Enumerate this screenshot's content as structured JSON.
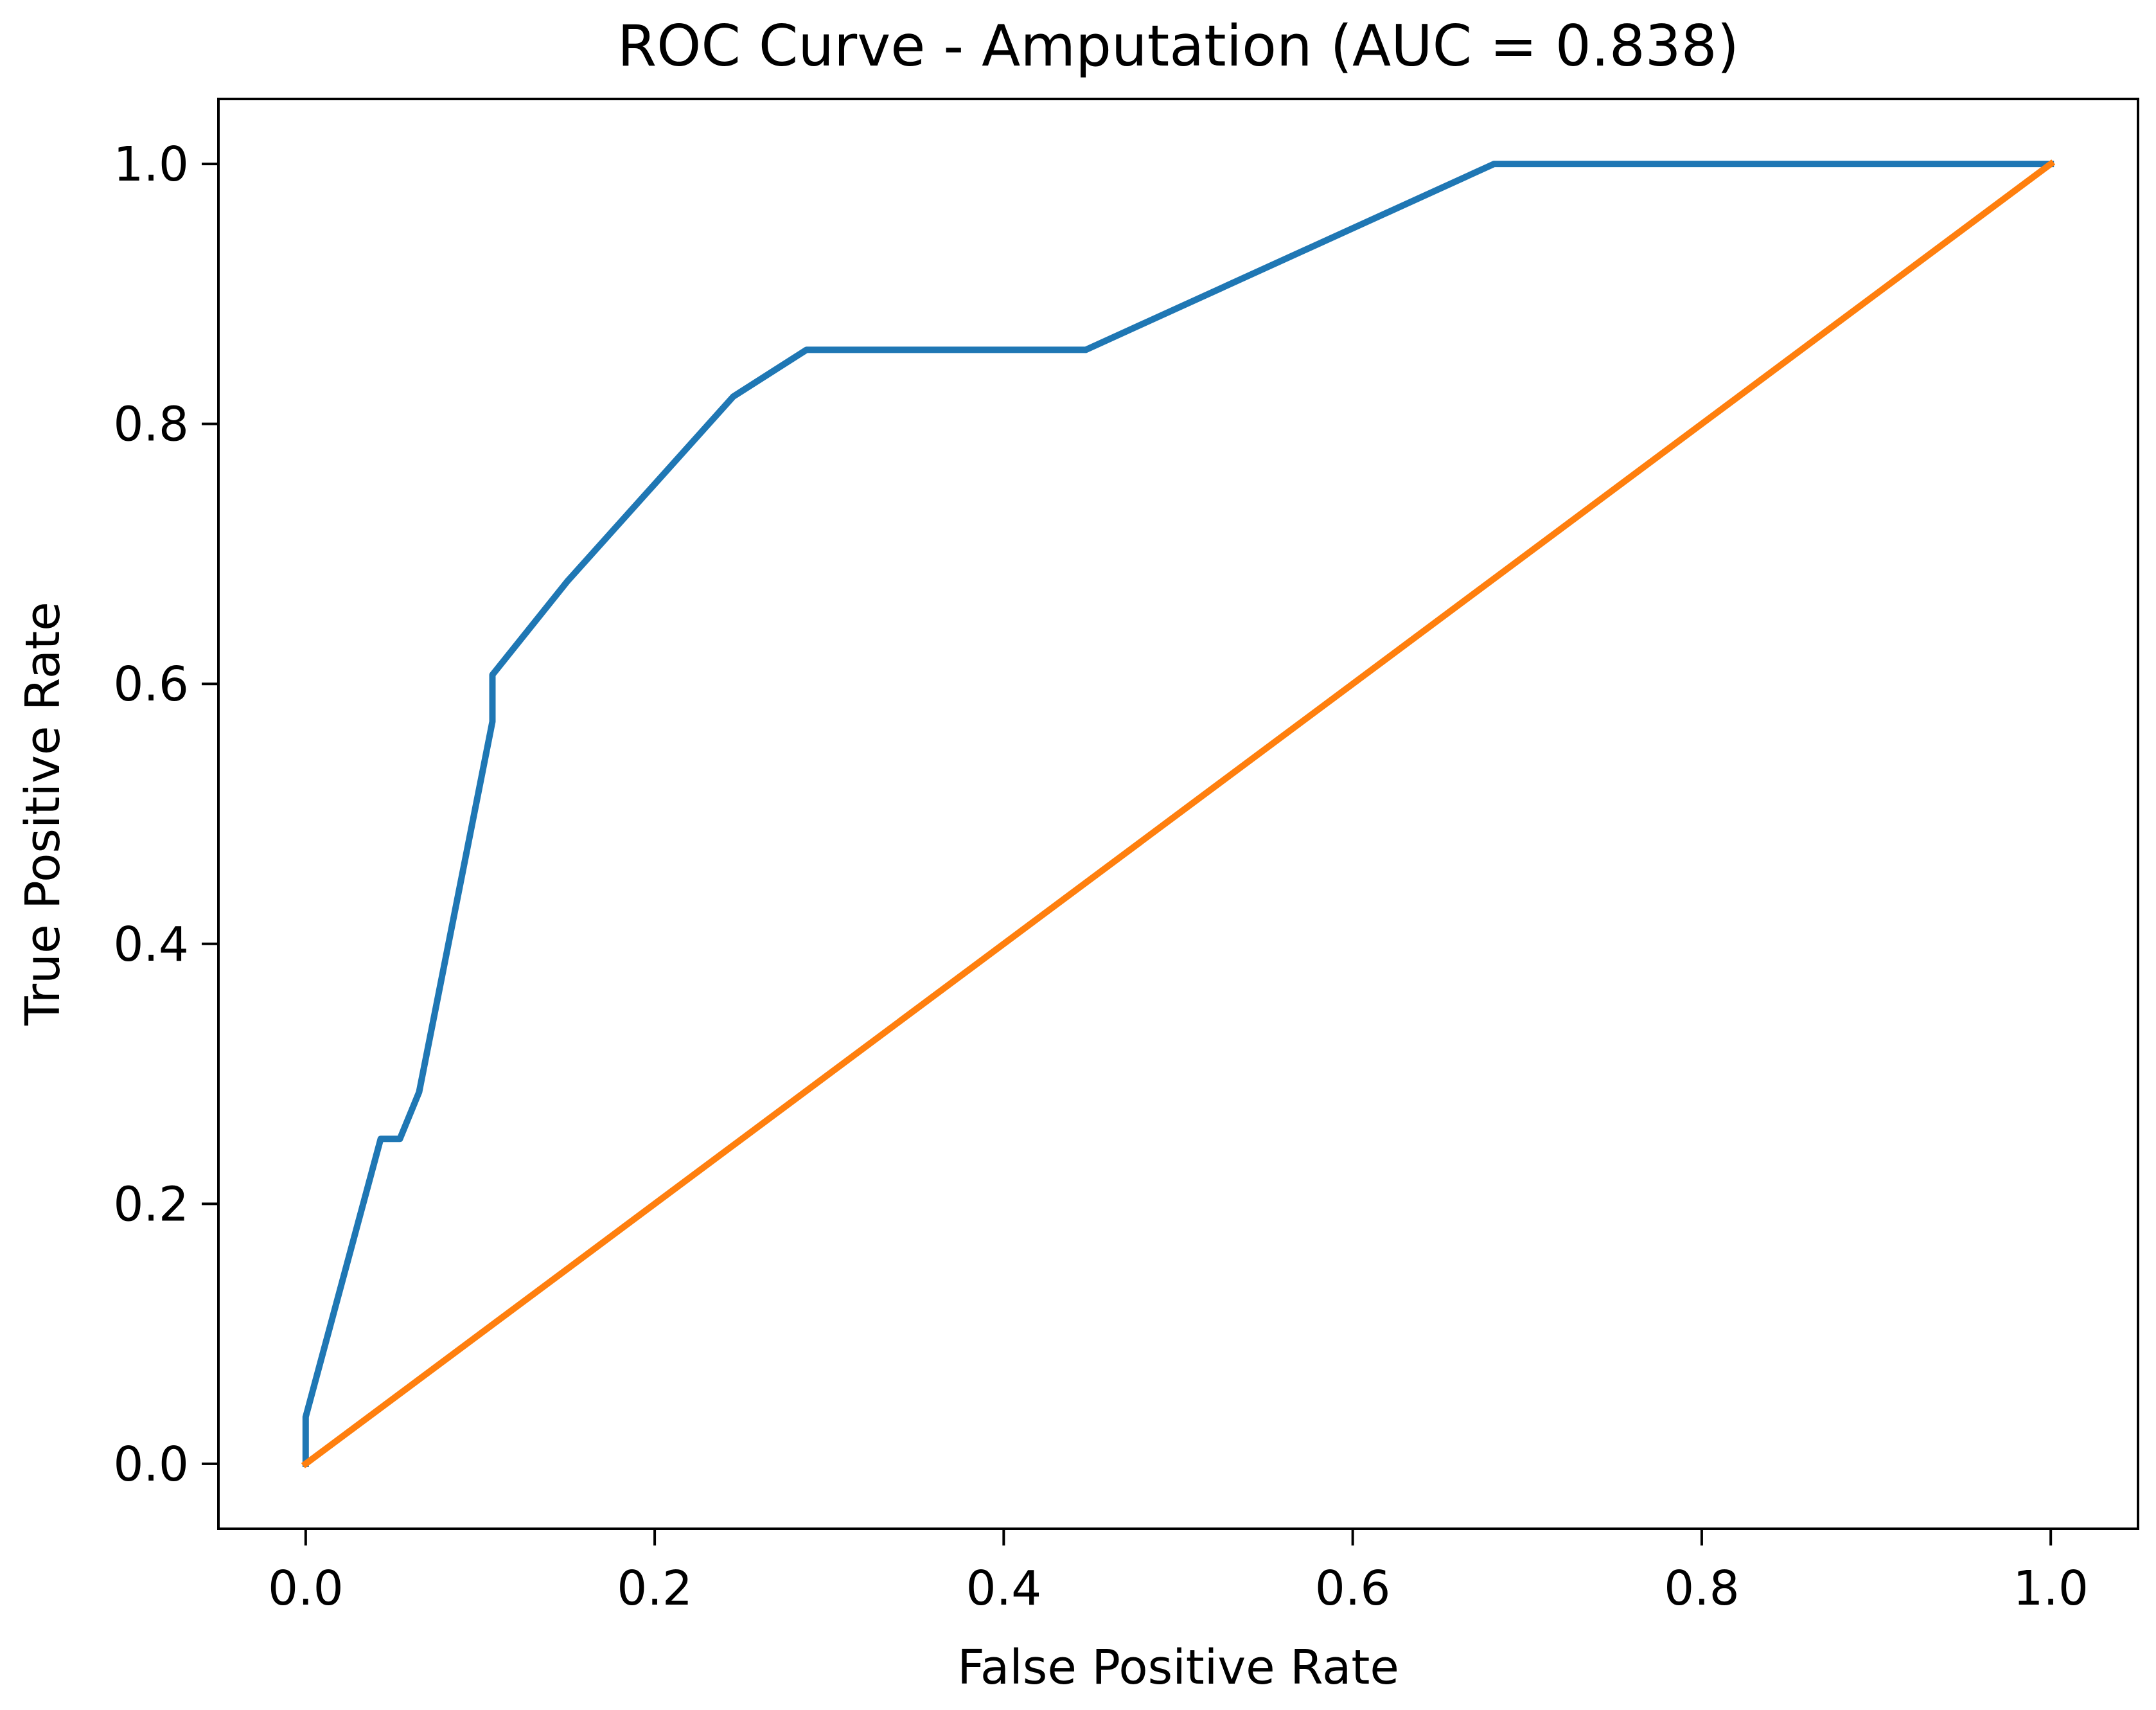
{
  "chart_data": {
    "type": "line",
    "title": "ROC Curve - Amputation (AUC = 0.838)",
    "xlabel": "False Positive Rate",
    "ylabel": "True Positive Rate",
    "xlim": [
      -0.05,
      1.05
    ],
    "ylim": [
      -0.05,
      1.05
    ],
    "xticks": [
      0.0,
      0.2,
      0.4,
      0.6,
      0.8,
      1.0
    ],
    "yticks": [
      0.0,
      0.2,
      0.4,
      0.6,
      0.8,
      1.0
    ],
    "xtick_labels": [
      "0.0",
      "0.2",
      "0.4",
      "0.6",
      "0.8",
      "1.0"
    ],
    "ytick_labels": [
      "0.0",
      "0.2",
      "0.4",
      "0.6",
      "0.8",
      "1.0"
    ],
    "grid": false,
    "legend": "none",
    "series": [
      {
        "color": "#1f77b4",
        "x": [
          0.0,
          0.0,
          0.043,
          0.054,
          0.065,
          0.107,
          0.107,
          0.15,
          0.245,
          0.287,
          0.447,
          0.681,
          1.0
        ],
        "y": [
          0.0,
          0.036,
          0.25,
          0.25,
          0.286,
          0.571,
          0.607,
          0.679,
          0.821,
          0.857,
          0.857,
          1.0,
          1.0
        ]
      },
      {
        "color": "#ff7f0e",
        "x": [
          0.0,
          1.0
        ],
        "y": [
          0.0,
          1.0
        ]
      }
    ]
  }
}
